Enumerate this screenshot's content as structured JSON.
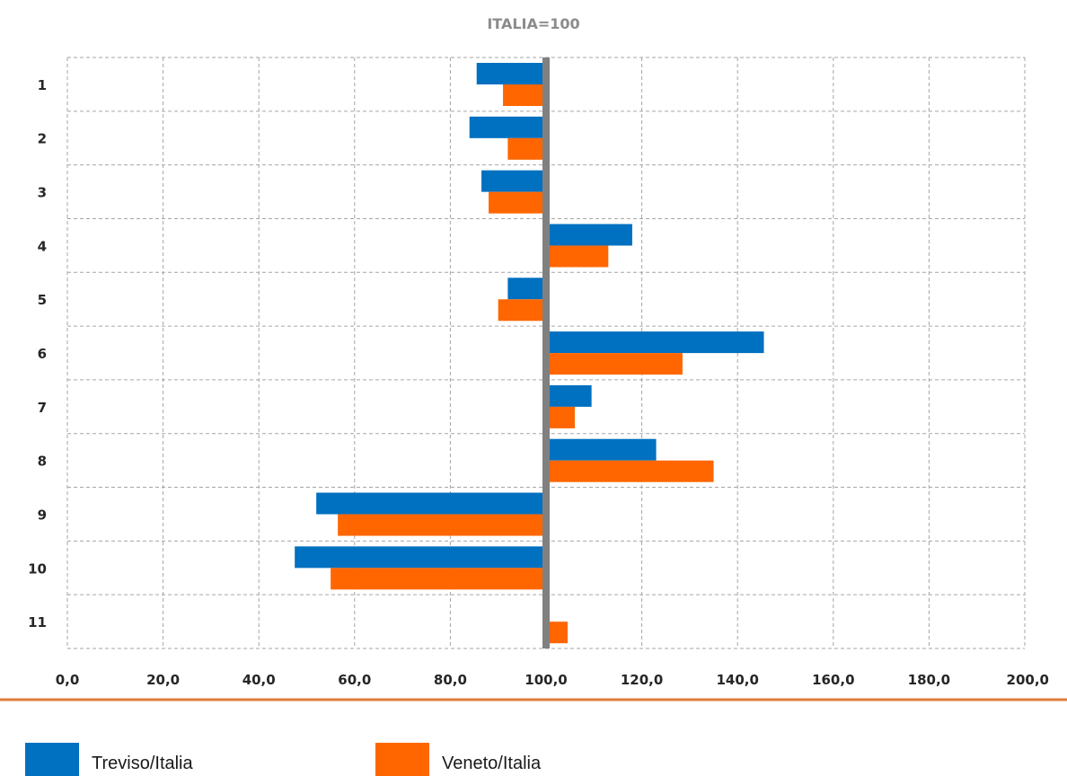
{
  "chart_data": {
    "type": "bar",
    "orientation": "horizontal",
    "title": "ITALIA=100",
    "categories": [
      "1",
      "2",
      "3",
      "4",
      "5",
      "6",
      "7",
      "8",
      "9",
      "10",
      "11"
    ],
    "baseline": 100,
    "xlim": [
      0,
      200
    ],
    "xticks": [
      "0,0",
      "20,0",
      "40,0",
      "60,0",
      "80,0",
      "100,0",
      "120,0",
      "140,0",
      "160,0",
      "180,0",
      "200,0"
    ],
    "grid": true,
    "legend_position": "bottom",
    "series": [
      {
        "name": "Treviso/Italia",
        "color": "#0070c0",
        "values": [
          85.5,
          84,
          86.5,
          118,
          92,
          145.5,
          109.5,
          123,
          52,
          47.5,
          null
        ]
      },
      {
        "name": "Veneto/Italia",
        "color": "#ff6600",
        "values": [
          91,
          92,
          88,
          113,
          90,
          128.5,
          106,
          135,
          56.5,
          55,
          104.5
        ]
      }
    ]
  }
}
